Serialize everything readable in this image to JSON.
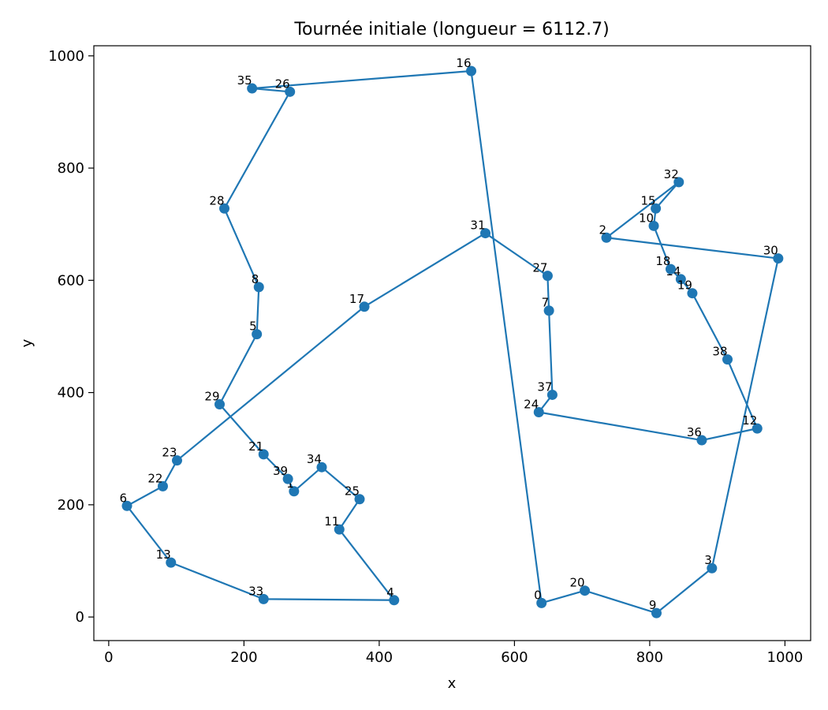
{
  "chart_data": {
    "type": "line",
    "title": "Tournée initiale (longueur = 6112.7)",
    "xlabel": "x",
    "ylabel": "y",
    "xlim": [
      -22,
      1038
    ],
    "ylim": [
      -42,
      1018
    ],
    "xticks": [
      0,
      200,
      400,
      600,
      800,
      1000
    ],
    "yticks": [
      0,
      200,
      400,
      600,
      800,
      1000
    ],
    "grid": false,
    "color": "#1f77b4",
    "points": [
      {
        "id": "0",
        "x": 640,
        "y": 25
      },
      {
        "id": "1",
        "x": 274,
        "y": 224
      },
      {
        "id": "2",
        "x": 736,
        "y": 676
      },
      {
        "id": "3",
        "x": 892,
        "y": 87
      },
      {
        "id": "4",
        "x": 422,
        "y": 30
      },
      {
        "id": "5",
        "x": 219,
        "y": 504
      },
      {
        "id": "6",
        "x": 27,
        "y": 198
      },
      {
        "id": "7",
        "x": 651,
        "y": 546
      },
      {
        "id": "8",
        "x": 222,
        "y": 588
      },
      {
        "id": "9",
        "x": 810,
        "y": 7
      },
      {
        "id": "10",
        "x": 806,
        "y": 697
      },
      {
        "id": "11",
        "x": 341,
        "y": 156
      },
      {
        "id": "12",
        "x": 959,
        "y": 336
      },
      {
        "id": "13",
        "x": 92,
        "y": 97
      },
      {
        "id": "14",
        "x": 846,
        "y": 602
      },
      {
        "id": "15",
        "x": 809,
        "y": 728
      },
      {
        "id": "16",
        "x": 536,
        "y": 973
      },
      {
        "id": "17",
        "x": 378,
        "y": 553
      },
      {
        "id": "18",
        "x": 831,
        "y": 620
      },
      {
        "id": "19",
        "x": 863,
        "y": 577
      },
      {
        "id": "20",
        "x": 704,
        "y": 47
      },
      {
        "id": "21",
        "x": 229,
        "y": 290
      },
      {
        "id": "22",
        "x": 80,
        "y": 233
      },
      {
        "id": "23",
        "x": 101,
        "y": 279
      },
      {
        "id": "24",
        "x": 636,
        "y": 365
      },
      {
        "id": "25",
        "x": 371,
        "y": 210
      },
      {
        "id": "26",
        "x": 268,
        "y": 936
      },
      {
        "id": "27",
        "x": 649,
        "y": 608
      },
      {
        "id": "28",
        "x": 171,
        "y": 728
      },
      {
        "id": "29",
        "x": 164,
        "y": 379
      },
      {
        "id": "30",
        "x": 990,
        "y": 639
      },
      {
        "id": "31",
        "x": 557,
        "y": 684
      },
      {
        "id": "32",
        "x": 843,
        "y": 775
      },
      {
        "id": "33",
        "x": 229,
        "y": 32
      },
      {
        "id": "34",
        "x": 315,
        "y": 267
      },
      {
        "id": "35",
        "x": 212,
        "y": 942
      },
      {
        "id": "36",
        "x": 877,
        "y": 315
      },
      {
        "id": "37",
        "x": 656,
        "y": 396
      },
      {
        "id": "38",
        "x": 915,
        "y": 459
      },
      {
        "id": "39",
        "x": 265,
        "y": 246
      }
    ],
    "tour": [
      "0",
      "16",
      "35",
      "26",
      "28",
      "8",
      "5",
      "29",
      "21",
      "39",
      "1",
      "34",
      "25",
      "11",
      "4",
      "33",
      "13",
      "6",
      "22",
      "23",
      "17",
      "31",
      "27",
      "7",
      "37",
      "24",
      "36",
      "12",
      "38",
      "19",
      "14",
      "18",
      "10",
      "15",
      "32",
      "2",
      "30",
      "3",
      "9",
      "20",
      "0"
    ]
  }
}
